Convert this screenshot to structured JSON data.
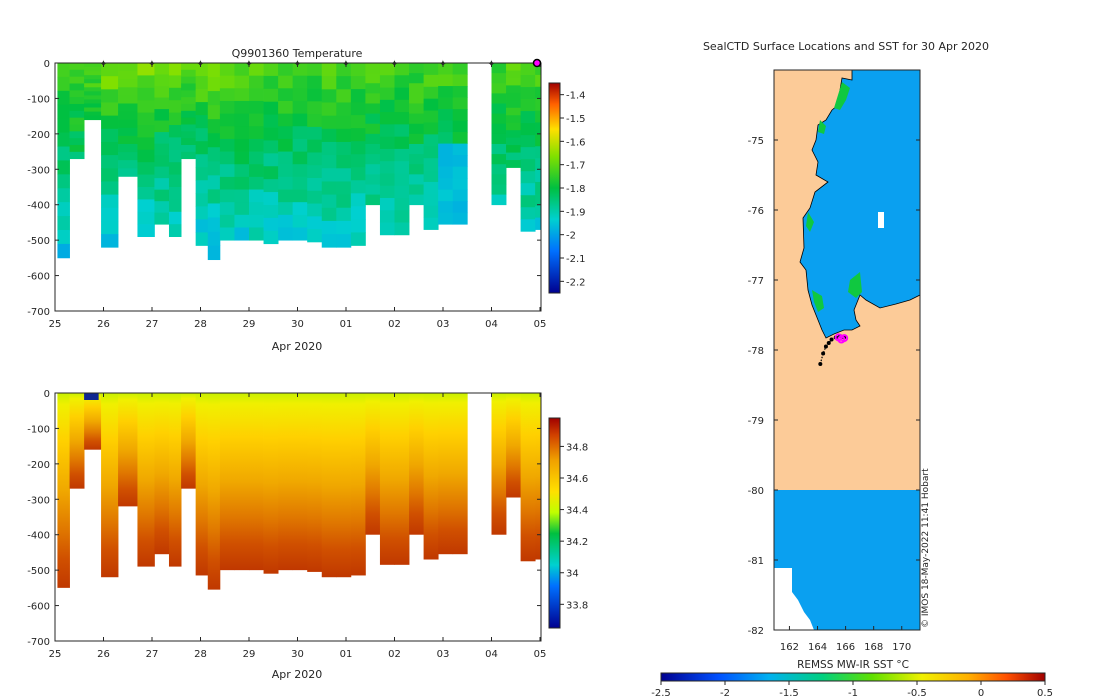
{
  "colors": {
    "land": "#fccb98",
    "ocean_sst": "#0aa0f0",
    "marker": "#ff00ff",
    "track": "#000000"
  },
  "chart_data": [
    {
      "id": "temperature",
      "type": "heatmap",
      "title": "Q9901360  Temperature",
      "xlabel": "Apr 2020",
      "x_tick_labels": [
        "25",
        "26",
        "27",
        "28",
        "29",
        "30",
        "01",
        "02",
        "03",
        "04",
        "05"
      ],
      "ylabel": "",
      "ylim": [
        -700,
        0
      ],
      "y_ticks": [
        0,
        -100,
        -200,
        -300,
        -400,
        -500,
        -600,
        -700
      ],
      "colorbar": {
        "min": -2.25,
        "max": -1.35,
        "ticks": [
          -1.4,
          -1.5,
          -1.6,
          -1.7,
          -1.8,
          -1.9,
          -2,
          -2.1,
          -2.2
        ],
        "tick_labels": [
          "-1.4",
          "-1.5",
          "-1.6",
          "-1.7",
          "-1.8",
          "-1.9",
          "-2",
          "-2.1",
          "-2.2"
        ]
      },
      "surface_markers_day": [
        26,
        27,
        28,
        29,
        30,
        31,
        32,
        33,
        34
      ],
      "profiles": [
        {
          "t": 25.05,
          "depth": 550
        },
        {
          "t": 25.3,
          "depth": 270
        },
        {
          "t": 25.6,
          "depth": 160
        },
        {
          "t": 25.95,
          "depth": 520
        },
        {
          "t": 26.3,
          "depth": 320
        },
        {
          "t": 26.7,
          "depth": 490
        },
        {
          "t": 27.05,
          "depth": 455
        },
        {
          "t": 27.35,
          "depth": 490
        },
        {
          "t": 27.6,
          "depth": 270
        },
        {
          "t": 27.9,
          "depth": 515
        },
        {
          "t": 28.15,
          "depth": 555
        },
        {
          "t": 28.4,
          "depth": 500
        },
        {
          "t": 28.7,
          "depth": 500
        },
        {
          "t": 29.0,
          "depth": 500
        },
        {
          "t": 29.3,
          "depth": 510
        },
        {
          "t": 29.6,
          "depth": 500
        },
        {
          "t": 29.9,
          "depth": 500
        },
        {
          "t": 30.2,
          "depth": 505
        },
        {
          "t": 30.5,
          "depth": 520
        },
        {
          "t": 30.8,
          "depth": 520
        },
        {
          "t": 31.1,
          "depth": 515
        },
        {
          "t": 31.4,
          "depth": 400
        },
        {
          "t": 31.7,
          "depth": 485
        },
        {
          "t": 32.0,
          "depth": 485
        },
        {
          "t": 32.3,
          "depth": 400
        },
        {
          "t": 32.6,
          "depth": 470
        },
        {
          "t": 32.9,
          "depth": 455
        },
        {
          "t": 33.2,
          "depth": 455
        },
        {
          "t": 34.0,
          "depth": 400
        },
        {
          "t": 34.3,
          "depth": 295
        },
        {
          "t": 34.6,
          "depth": 475
        },
        {
          "t": 34.9,
          "depth": 470
        }
      ]
    },
    {
      "id": "salinity",
      "type": "heatmap",
      "title": "",
      "xlabel": "Apr 2020",
      "x_tick_labels": [
        "25",
        "26",
        "27",
        "28",
        "29",
        "30",
        "01",
        "02",
        "03",
        "04",
        "05"
      ],
      "ylim": [
        -700,
        0
      ],
      "y_ticks": [
        0,
        -100,
        -200,
        -300,
        -400,
        -500,
        -600,
        -700
      ],
      "colorbar": {
        "min": 33.65,
        "max": 34.98,
        "ticks": [
          34.8,
          34.6,
          34.4,
          34.2,
          34,
          33.8
        ],
        "tick_labels": [
          "34.8",
          "34.6",
          "34.4",
          "34.2",
          "34",
          "33.8"
        ]
      },
      "surface_value": 34.3,
      "bottom_value": 34.85
    },
    {
      "id": "sst_map",
      "type": "map",
      "title": "SealCTD Surface Locations and SST for 30 Apr 2020",
      "x_tick_labels": [
        "162",
        "164",
        "166",
        "168",
        "170"
      ],
      "x_ticks": [
        162,
        164,
        166,
        168,
        170
      ],
      "xlim": [
        160.9,
        171.3
      ],
      "ylim": [
        -82,
        -74
      ],
      "y_ticks": [
        -75,
        -76,
        -77,
        -78,
        -79,
        -80,
        -81,
        -82
      ],
      "y_tick_labels": [
        "-75",
        "-76",
        "-77",
        "-78",
        "-79",
        "-80",
        "-81",
        "-82"
      ],
      "watermark": "© IMOS 18-May-2022 11:41 Hobart",
      "colorbar": {
        "label": "REMSS MW-IR SST °C",
        "min": -2.5,
        "max": 0.5,
        "ticks": [
          -2.5,
          -2,
          -1.5,
          -1,
          -0.5,
          0,
          0.5
        ],
        "tick_labels": [
          "-2.5",
          "-2",
          "-1.5",
          "-1",
          "-0.5",
          "0",
          "0.5"
        ]
      },
      "track_lon": [
        164.2,
        164.4,
        164.6,
        164.8,
        165.0,
        165.3,
        165.6,
        165.9
      ],
      "track_lat": [
        -78.2,
        -78.05,
        -77.95,
        -77.9,
        -77.85,
        -77.82,
        -77.8,
        -77.82
      ],
      "marker_lon": [
        165.5,
        165.7,
        165.9
      ],
      "marker_lat": [
        -77.82,
        -77.85,
        -77.83
      ]
    }
  ]
}
